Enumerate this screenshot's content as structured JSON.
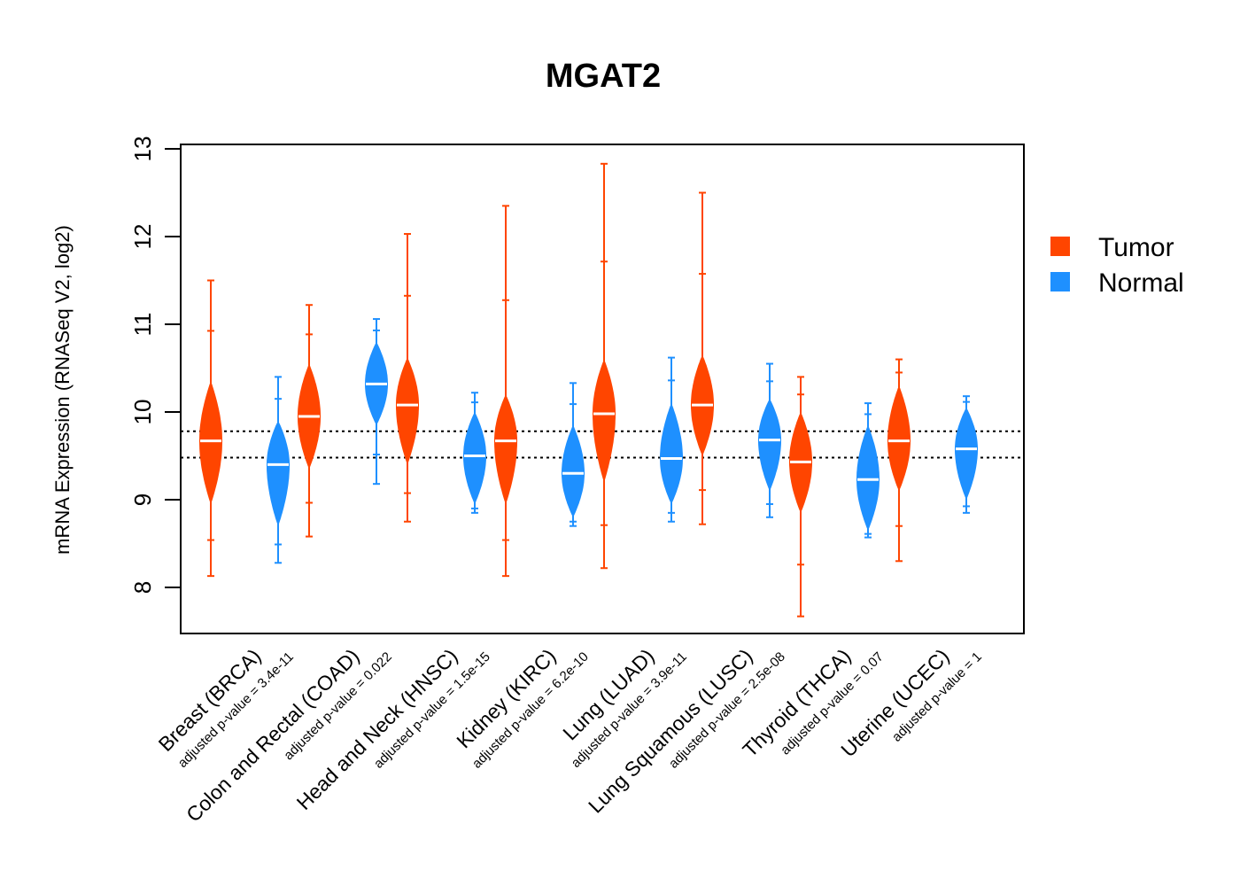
{
  "chart_data": {
    "type": "violin",
    "title": "MGAT2",
    "ylabel": "mRNA Expression (RNASeq V2, log2)",
    "xlabel": "",
    "ylim": [
      7.5,
      13.05
    ],
    "yticks": [
      8,
      9,
      10,
      11,
      12,
      13
    ],
    "grid": false,
    "legend_position": "right",
    "reference_lines": [
      9.48,
      9.78
    ],
    "colors": {
      "Tumor": "#ff4500",
      "Normal": "#1e90ff"
    },
    "legend": [
      "Tumor",
      "Normal"
    ],
    "categories": [
      "Breast (BRCA)",
      "Colon and Rectal (COAD)",
      "Head and Neck (HNSC)",
      "Kidney (KIRC)",
      "Lung (LUAD)",
      "Lung Squamous (LUSC)",
      "Thyroid (THCA)",
      "Uterine (UCEC)"
    ],
    "p_values": [
      "adjusted p-value = 3.4e-11",
      "adjusted p-value = 0.022",
      "adjusted p-value = 1.5e-15",
      "adjusted p-value = 6.2e-10",
      "adjusted p-value = 3.9e-11",
      "adjusted p-value = 2.5e-08",
      "adjusted p-value = 0.07",
      "adjusted p-value = 1"
    ],
    "series": [
      {
        "name": "Tumor",
        "median": [
          9.67,
          9.95,
          10.08,
          9.67,
          9.98,
          10.08,
          9.43,
          9.67
        ],
        "min": [
          8.13,
          8.58,
          8.75,
          8.13,
          8.22,
          8.72,
          7.67,
          8.3
        ],
        "max": [
          11.5,
          11.22,
          12.03,
          12.35,
          12.83,
          12.5,
          10.4,
          10.6
        ],
        "body_low": [
          8.95,
          9.35,
          9.4,
          8.95,
          9.2,
          9.5,
          8.85,
          9.1
        ],
        "body_high": [
          10.35,
          10.55,
          10.62,
          10.2,
          10.6,
          10.65,
          10.0,
          10.3
        ]
      },
      {
        "name": "Normal",
        "median": [
          9.4,
          10.32,
          9.5,
          9.3,
          9.47,
          9.68,
          9.23,
          9.58
        ],
        "min": [
          8.28,
          9.18,
          8.85,
          8.7,
          8.75,
          8.8,
          8.57,
          8.85
        ],
        "max": [
          10.4,
          11.06,
          10.22,
          10.33,
          10.62,
          10.55,
          10.1,
          10.18
        ],
        "body_low": [
          8.7,
          9.85,
          8.95,
          8.8,
          8.95,
          9.1,
          8.65,
          9.0
        ],
        "body_high": [
          9.9,
          10.8,
          10.0,
          9.85,
          10.1,
          10.15,
          9.85,
          10.05
        ]
      }
    ]
  }
}
